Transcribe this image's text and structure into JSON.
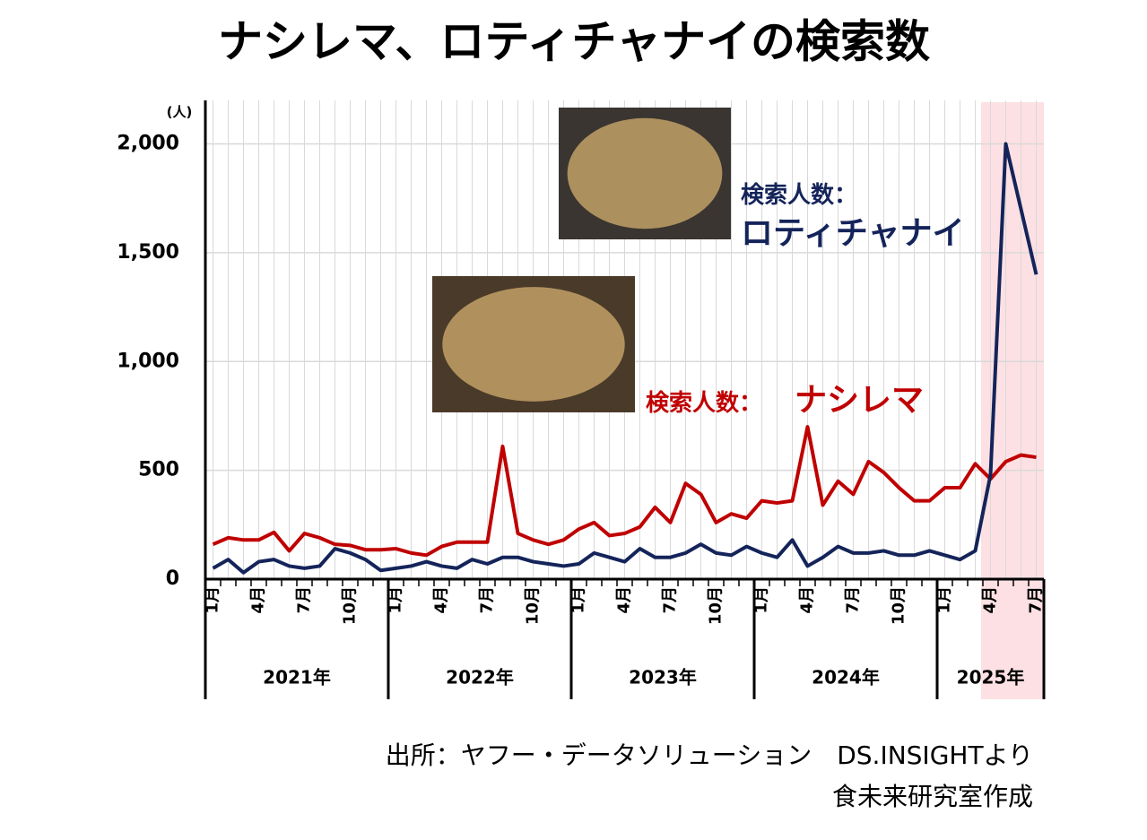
{
  "chart_data": {
    "type": "line",
    "title": "ナシレマ、ロティチャナイの検索数",
    "y_unit": "(人)",
    "annotation_prefix": "検索人数：",
    "source": "出所：ヤフー・データソリューション　DS.INSIGHTより",
    "credit": "食未来研究室作成",
    "categories": [
      "1月",
      null,
      null,
      "4月",
      null,
      null,
      "7月",
      null,
      null,
      "10月",
      null,
      null,
      "1月",
      null,
      null,
      "4月",
      null,
      null,
      "7月",
      null,
      null,
      "10月",
      null,
      null,
      "1月",
      null,
      null,
      "4月",
      null,
      null,
      "7月",
      null,
      null,
      "10月",
      null,
      null,
      "1月",
      null,
      null,
      "4月",
      null,
      null,
      "7月",
      null,
      null,
      "10月",
      null,
      null,
      "1月",
      null,
      null,
      "4月",
      null,
      null,
      "7月"
    ],
    "x_groups": [
      "2021年",
      "2022年",
      "2023年",
      "2024年",
      "2025年"
    ],
    "series": [
      {
        "name": "ナシレマ",
        "color": "#c00000",
        "values": [
          160,
          190,
          180,
          180,
          215,
          130,
          210,
          190,
          160,
          155,
          135,
          135,
          140,
          120,
          110,
          150,
          170,
          170,
          170,
          610,
          210,
          180,
          160,
          180,
          230,
          260,
          200,
          210,
          240,
          330,
          260,
          440,
          390,
          260,
          300,
          280,
          360,
          350,
          360,
          700,
          340,
          450,
          390,
          540,
          490,
          420,
          360,
          360,
          420,
          420,
          530,
          460,
          540,
          570,
          560
        ]
      },
      {
        "name": "ロティチャナイ",
        "color": "#14245a",
        "values": [
          50,
          90,
          30,
          80,
          90,
          60,
          50,
          60,
          140,
          120,
          90,
          40,
          50,
          60,
          80,
          60,
          50,
          90,
          70,
          100,
          100,
          80,
          70,
          60,
          70,
          120,
          100,
          80,
          140,
          100,
          100,
          120,
          160,
          120,
          110,
          150,
          120,
          100,
          180,
          60,
          100,
          150,
          120,
          120,
          130,
          110,
          110,
          130,
          110,
          90,
          130,
          480,
          2000,
          1700,
          1400
        ]
      }
    ],
    "ylim": [
      0,
      2200
    ],
    "yticks": [
      0,
      500,
      {
        "value": 1000,
        "label": "1,000"
      },
      {
        "value": 1500,
        "label": "1,500"
      },
      {
        "value": 2000,
        "label": "2,000"
      }
    ],
    "grid": true
  }
}
